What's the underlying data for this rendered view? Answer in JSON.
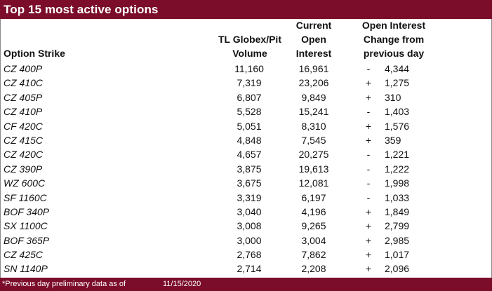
{
  "title": "Top 15 most active options",
  "headers": {
    "strike": "Option Strike",
    "volume": "TL Globex/Pit\nVolume",
    "open_interest": "Current\nOpen\nInterest",
    "oi_change": "Open Interest\nChange from\nprevious day"
  },
  "rows": [
    {
      "strike": "CZ 400P",
      "volume": "11,160",
      "oi": "16,961",
      "sign": "-",
      "change": "4,344"
    },
    {
      "strike": "CZ 410C",
      "volume": "7,319",
      "oi": "23,206",
      "sign": "+",
      "change": "1,275"
    },
    {
      "strike": "CZ 405P",
      "volume": "6,807",
      "oi": "9,849",
      "sign": "+",
      "change": "310"
    },
    {
      "strike": "CZ 410P",
      "volume": "5,528",
      "oi": "15,241",
      "sign": "-",
      "change": "1,403"
    },
    {
      "strike": "CF 420C",
      "volume": "5,051",
      "oi": "8,310",
      "sign": "+",
      "change": "1,576"
    },
    {
      "strike": "CZ 415C",
      "volume": "4,848",
      "oi": "7,545",
      "sign": "+",
      "change": "359"
    },
    {
      "strike": "CZ 420C",
      "volume": "4,657",
      "oi": "20,275",
      "sign": "-",
      "change": "1,221"
    },
    {
      "strike": "CZ 390P",
      "volume": "3,875",
      "oi": "19,613",
      "sign": "-",
      "change": "1,222"
    },
    {
      "strike": "WZ 600C",
      "volume": "3,675",
      "oi": "12,081",
      "sign": "-",
      "change": "1,998"
    },
    {
      "strike": "SF 1160C",
      "volume": "3,319",
      "oi": "6,197",
      "sign": "-",
      "change": "1,033"
    },
    {
      "strike": "BOF 340P",
      "volume": "3,040",
      "oi": "4,196",
      "sign": "+",
      "change": "1,849"
    },
    {
      "strike": "SX 1100C",
      "volume": "3,008",
      "oi": "9,265",
      "sign": "+",
      "change": "2,799"
    },
    {
      "strike": "BOF 365P",
      "volume": "3,000",
      "oi": "3,004",
      "sign": "+",
      "change": "2,985"
    },
    {
      "strike": "CZ 425C",
      "volume": "2,768",
      "oi": "7,862",
      "sign": "+",
      "change": "1,017"
    },
    {
      "strike": "SN 1140P",
      "volume": "2,714",
      "oi": "2,208",
      "sign": "+",
      "change": "2,096"
    }
  ],
  "footer": {
    "note": "*Previous day preliminary data as of",
    "date": "11/15/2020"
  },
  "colors": {
    "brand_bar": "#7b0d2b"
  }
}
